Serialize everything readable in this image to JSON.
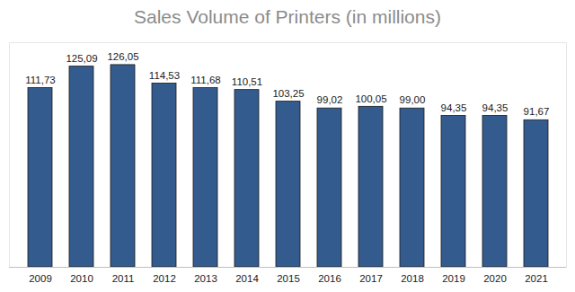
{
  "chart_data": {
    "type": "bar",
    "title": "Sales Volume of Printers (in millions)",
    "categories": [
      "2009",
      "2010",
      "2011",
      "2012",
      "2013",
      "2014",
      "2015",
      "2016",
      "2017",
      "2018",
      "2019",
      "2020",
      "2021"
    ],
    "values": [
      111.73,
      125.09,
      126.05,
      114.53,
      111.68,
      110.51,
      103.25,
      99.02,
      100.05,
      99.0,
      94.35,
      94.35,
      91.67
    ],
    "value_labels": [
      "111,73",
      "125,09",
      "126,05",
      "114,53",
      "111,68",
      "110,51",
      "103,25",
      "99,02",
      "100,05",
      "99,00",
      "94,35",
      "94,35",
      "91,67"
    ],
    "color": "#335b8e",
    "ylim": [
      0,
      140
    ],
    "grid": false,
    "data_labels": true,
    "tick_labels": "x"
  }
}
